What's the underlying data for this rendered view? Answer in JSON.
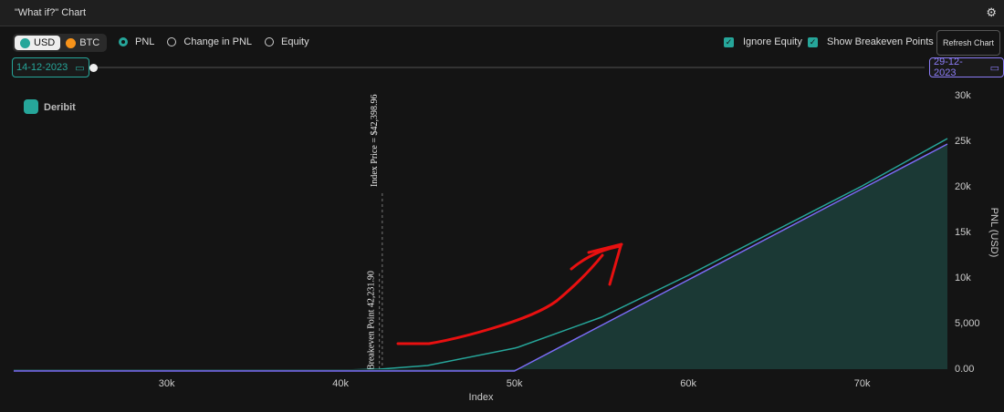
{
  "header": {
    "title": "\"What if?\" Chart"
  },
  "controls": {
    "currencies": [
      "USD",
      "BTC"
    ],
    "modes": [
      "PNL",
      "Change in PNL",
      "Equity"
    ],
    "selected_mode": "PNL",
    "checkboxes": [
      "Ignore Equity",
      "Show Breakeven Points"
    ],
    "button": "Refresh Chart",
    "start_date": "14-12-2023",
    "end_date": "29-12-2023"
  },
  "logo": "Deribit",
  "chart_data": {
    "type": "line",
    "x_label": "Index",
    "y_label": "PNL (USD)",
    "x": [
      21200,
      30000,
      40000,
      42232,
      45000,
      50000,
      50200,
      55000,
      60000,
      65000,
      70000,
      74900
    ],
    "series": [
      {
        "color": "#26a69a",
        "values": [
          -100,
          -100,
          -100,
          0,
          400,
          2300,
          2400,
          5700,
          10300,
          15200,
          20100,
          25300
        ]
      },
      {
        "color": "#7b6cf6",
        "fill": "#1b3935",
        "values": [
          -200,
          -200,
          -200,
          -200,
          -200,
          -200,
          0,
          4800,
          9800,
          14800,
          19800,
          24700
        ]
      }
    ],
    "xlim": [
      21200,
      74900
    ],
    "ylim": [
      -300,
      30300
    ],
    "xticks": [
      {
        "value": 30000,
        "label": "30k"
      },
      {
        "value": 40000,
        "label": "40k"
      },
      {
        "value": 50000,
        "label": "50k"
      },
      {
        "value": 60000,
        "label": "60k"
      },
      {
        "value": 70000,
        "label": "70k"
      }
    ],
    "yticks": [
      {
        "value": 0,
        "label": "0.00"
      },
      {
        "value": 5000,
        "label": "5,000"
      },
      {
        "value": 10000,
        "label": "10k"
      },
      {
        "value": 15000,
        "label": "15k"
      },
      {
        "value": 20000,
        "label": "20k"
      },
      {
        "value": 25000,
        "label": "25k"
      },
      {
        "value": 30000,
        "label": "30k"
      }
    ],
    "annotations": [
      {
        "x": 42398.96,
        "label": "Index Price = $42,398.96"
      },
      {
        "x": 42231.9,
        "label": "Breakeven Point 42,231.90"
      }
    ]
  }
}
